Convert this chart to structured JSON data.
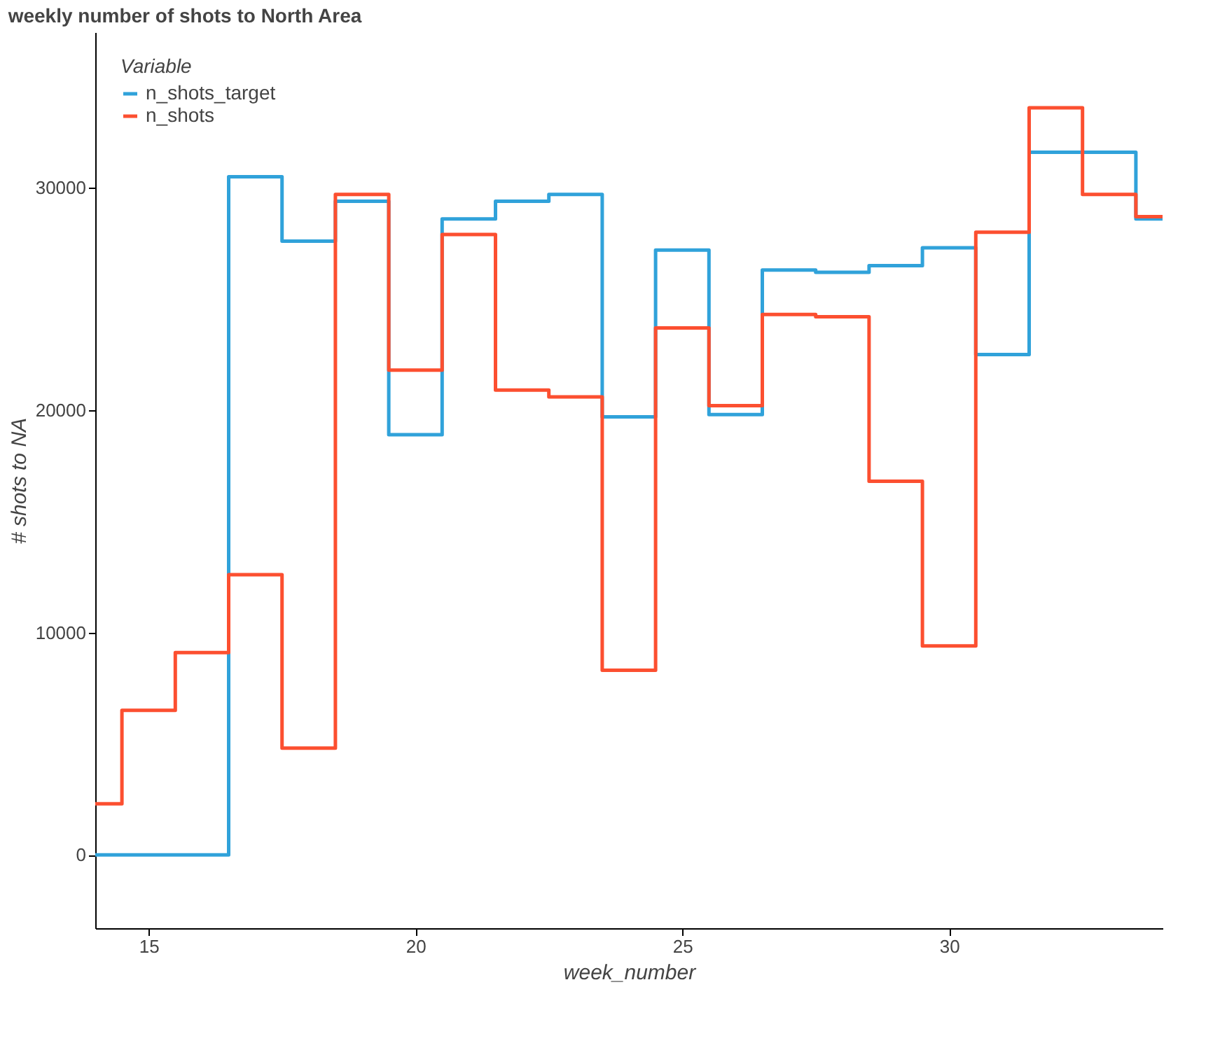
{
  "chart_data": {
    "type": "step",
    "title": "weekly number of shots to North Area",
    "xlabel": "week_number",
    "ylabel": "# shots to NA",
    "legend_title": "Variable",
    "legend": "top left",
    "grid": false,
    "x": [
      14,
      15,
      16,
      17,
      18,
      19,
      20,
      21,
      22,
      23,
      24,
      25,
      26,
      27,
      28,
      29,
      30,
      31,
      32,
      33,
      34
    ],
    "xlim": [
      14,
      34
    ],
    "xticks": [
      15,
      20,
      25,
      30
    ],
    "ylim": [
      -3300,
      37000
    ],
    "yticks": [
      0,
      10000,
      20000,
      30000
    ],
    "series": [
      {
        "name": "n_shots_target",
        "color": "#30a2da",
        "values": [
          0,
          0,
          0,
          30500,
          27600,
          29400,
          18900,
          28600,
          29400,
          29700,
          19700,
          27200,
          19800,
          26300,
          26200,
          26500,
          27300,
          22500,
          31600,
          31600,
          28600
        ]
      },
      {
        "name": "n_shots",
        "color": "#fc4f30",
        "values": [
          2300,
          6500,
          9100,
          12600,
          4800,
          29700,
          21800,
          27900,
          20900,
          20600,
          8300,
          23700,
          20200,
          24300,
          24200,
          16800,
          9400,
          28000,
          33600,
          29700,
          28700
        ]
      }
    ]
  }
}
